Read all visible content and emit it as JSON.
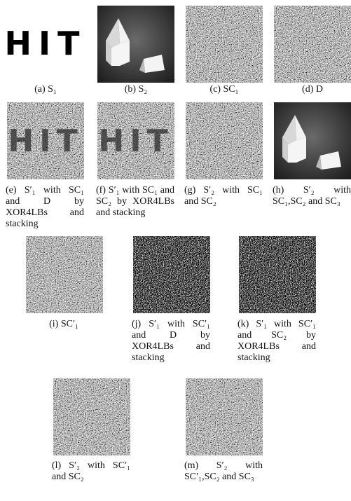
{
  "panels": [
    {
      "caption": "(a) S₁",
      "image_text": "HIT"
    },
    {
      "caption": "(b) S₂"
    },
    {
      "caption": "(c) SC₁"
    },
    {
      "caption": "(d) D"
    },
    {
      "caption": "(e) S′₁ with SC₁ and D by XOR4LBs and stacking",
      "image_text": "HIT"
    },
    {
      "caption": "(f) S′₁ with SC₁ and SC₂ by XOR4LBs and stacking",
      "image_text": "HIT"
    },
    {
      "caption": "(g) S′₂ with SC₁ and SC₂"
    },
    {
      "caption": "(h) S′₂ with SC₁,SC₂ and SC₃"
    },
    {
      "caption": "(i) SC′₁"
    },
    {
      "caption": "(j) S′₁ with SC′₁ and D by XOR4LBs and stacking"
    },
    {
      "caption": "(k) S′₁ with SC′₁ and SC₂ by XOR4LBs and stacking"
    },
    {
      "caption": "(l) S′₂ with SC′₁ and SC₂"
    },
    {
      "caption": "(m) S′₂ with SC′₁,SC₂ and SC₃"
    }
  ]
}
